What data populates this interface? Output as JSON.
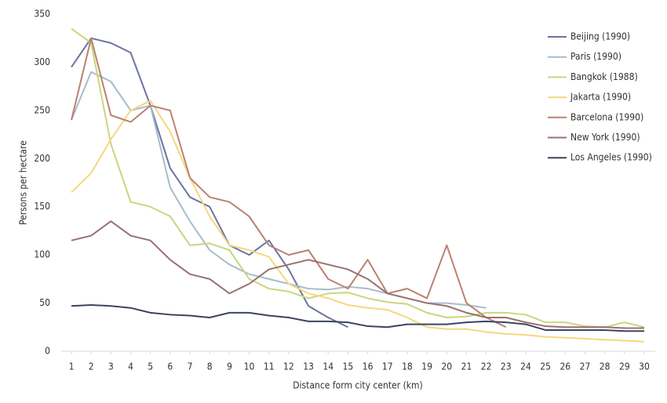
{
  "chart_data": {
    "type": "line",
    "x_label": "Distance form city center (km)",
    "y_label": "Persons per hectare",
    "x": [
      1,
      2,
      3,
      4,
      5,
      6,
      7,
      8,
      9,
      10,
      11,
      12,
      13,
      14,
      15,
      16,
      17,
      18,
      19,
      20,
      21,
      22,
      23,
      24,
      25,
      26,
      27,
      28,
      29,
      30
    ],
    "xlim": [
      1,
      30
    ],
    "xticks": [
      1,
      2,
      3,
      4,
      5,
      6,
      7,
      8,
      9,
      10,
      11,
      12,
      13,
      14,
      15,
      16,
      17,
      18,
      19,
      20,
      21,
      22,
      23,
      24,
      25,
      26,
      27,
      28,
      29,
      30
    ],
    "ylim": [
      0,
      350
    ],
    "yticks": [
      0,
      50,
      100,
      150,
      200,
      250,
      300,
      350
    ],
    "grid": false,
    "legend": "upper right",
    "series": [
      {
        "name": "Beijing (1990)",
        "color": "#6b74a0",
        "values": [
          295,
          325,
          320,
          310,
          255,
          190,
          160,
          150,
          110,
          100,
          115,
          85,
          47,
          35,
          25,
          null,
          null,
          null,
          null,
          null,
          null,
          null,
          null,
          null,
          null,
          null,
          null,
          null,
          null,
          null
        ]
      },
      {
        "name": "Paris (1990)",
        "color": "#a6bccc",
        "values": [
          240,
          290,
          280,
          250,
          255,
          170,
          135,
          105,
          90,
          80,
          75,
          70,
          65,
          64,
          67,
          65,
          60,
          55,
          50,
          50,
          48,
          45,
          null,
          null,
          null,
          null,
          null,
          null,
          null,
          null
        ]
      },
      {
        "name": "Bangkok (1988)",
        "color": "#c9d67e",
        "values": [
          335,
          320,
          215,
          155,
          150,
          140,
          110,
          112,
          105,
          75,
          65,
          62,
          55,
          60,
          61,
          55,
          51,
          49,
          40,
          35,
          36,
          40,
          40,
          38,
          30,
          30,
          26,
          25,
          30,
          25
        ]
      },
      {
        "name": "Jakarta (1990)",
        "color": "#f5d77e",
        "values": [
          165,
          185,
          220,
          250,
          260,
          228,
          180,
          140,
          110,
          105,
          98,
          70,
          60,
          55,
          48,
          45,
          43,
          35,
          25,
          23,
          23,
          20,
          18,
          17,
          15,
          14,
          13,
          12,
          11,
          10
        ]
      },
      {
        "name": "Barcelona (1990)",
        "color": "#b98270",
        "values": [
          240,
          325,
          245,
          238,
          255,
          250,
          180,
          160,
          155,
          140,
          110,
          100,
          105,
          75,
          65,
          95,
          60,
          65,
          55,
          110,
          50,
          35,
          25,
          null,
          null,
          null,
          null,
          null,
          null,
          null
        ]
      },
      {
        "name": "New York (1990)",
        "color": "#9a7070",
        "values": [
          115,
          120,
          135,
          120,
          115,
          95,
          80,
          75,
          60,
          70,
          85,
          90,
          95,
          90,
          85,
          75,
          60,
          55,
          50,
          47,
          40,
          35,
          35,
          30,
          26,
          25,
          25,
          25,
          24,
          24
        ]
      },
      {
        "name": "Los Angeles (1990)",
        "color": "#3b4560",
        "values": [
          47,
          48,
          47,
          45,
          40,
          38,
          37,
          35,
          40,
          40,
          37,
          35,
          31,
          31,
          30,
          26,
          25,
          28,
          28,
          28,
          30,
          31,
          30,
          28,
          22,
          22,
          22,
          22,
          21,
          21
        ]
      }
    ]
  }
}
